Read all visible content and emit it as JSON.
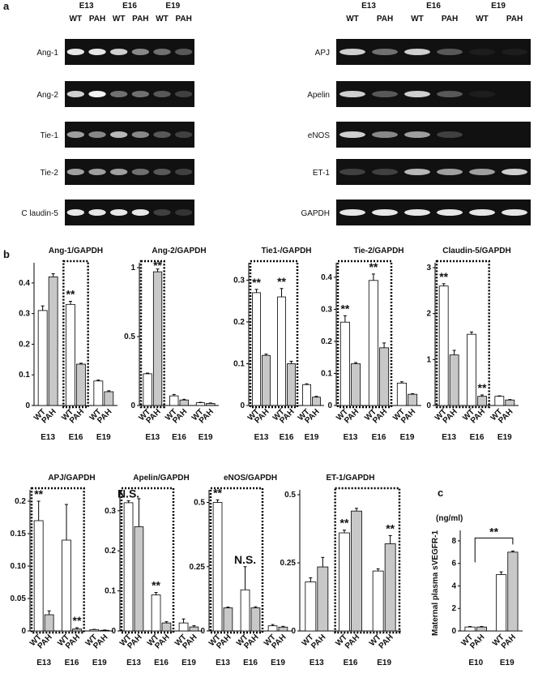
{
  "panels": [
    "a",
    "b",
    "c"
  ],
  "gels": {
    "stages": [
      "E13",
      "E16",
      "E19"
    ],
    "groups": [
      "WT",
      "PAH"
    ],
    "left_rows": [
      "Ang-1",
      "Ang-2",
      "Tie-1",
      "Tie-2",
      "C laudin-5"
    ],
    "right_rows": [
      "APJ",
      "Apelin",
      "eNOS",
      "ET-1",
      "GAPDH"
    ]
  },
  "chart_data": [
    {
      "type": "bar",
      "title": "Ang-1/GAPDH",
      "categories": [
        "E13",
        "E16",
        "E19"
      ],
      "ylim": [
        0,
        0.45
      ],
      "yticks": [
        0,
        0.1,
        0.2,
        0.3,
        0.4
      ],
      "series": [
        {
          "name": "WT",
          "color": "#ffffff",
          "values": [
            0.31,
            0.33,
            0.08
          ],
          "errors": [
            0.015,
            0.01,
            0.003
          ]
        },
        {
          "name": "PAH",
          "color": "#c8c8c8",
          "values": [
            0.42,
            0.135,
            0.045
          ],
          "errors": [
            0.01,
            0.003,
            0.003
          ]
        }
      ],
      "annotations": [
        "**"
      ]
    },
    {
      "type": "bar",
      "title": "Ang-2/GAPDH",
      "categories": [
        "E13",
        "E16",
        "E19"
      ],
      "ylim": [
        0,
        1
      ],
      "yticks": [
        0,
        0.5,
        1
      ],
      "series": [
        {
          "name": "WT",
          "color": "#ffffff",
          "values": [
            0.23,
            0.07,
            0.02
          ],
          "errors": [
            0.005,
            0.01,
            0.003
          ]
        },
        {
          "name": "PAH",
          "color": "#c8c8c8",
          "values": [
            0.97,
            0.04,
            0.015
          ],
          "errors": [
            0.02,
            0.005,
            0.003
          ]
        }
      ],
      "annotations": [
        "**"
      ]
    },
    {
      "type": "bar",
      "title": "Tie1-/GAPDH",
      "categories": [
        "E13",
        "E16",
        "E19"
      ],
      "ylim": [
        0,
        0.33
      ],
      "yticks": [
        0,
        0.1,
        0.2,
        0.3
      ],
      "series": [
        {
          "name": "WT",
          "color": "#ffffff",
          "values": [
            0.27,
            0.26,
            0.05
          ],
          "errors": [
            0.008,
            0.02,
            0.002
          ]
        },
        {
          "name": "PAH",
          "color": "#c8c8c8",
          "values": [
            0.12,
            0.1,
            0.02
          ],
          "errors": [
            0.003,
            0.006,
            0.002
          ]
        }
      ],
      "annotations": [
        "**",
        "**"
      ]
    },
    {
      "type": "bar",
      "title": "Tie-2/GAPDH",
      "categories": [
        "E13",
        "E16",
        "E19"
      ],
      "ylim": [
        0,
        0.43
      ],
      "yticks": [
        0,
        0.1,
        0.2,
        0.3,
        0.4
      ],
      "series": [
        {
          "name": "WT",
          "color": "#ffffff",
          "values": [
            0.26,
            0.39,
            0.07
          ],
          "errors": [
            0.02,
            0.02,
            0.004
          ]
        },
        {
          "name": "PAH",
          "color": "#c8c8c8",
          "values": [
            0.13,
            0.18,
            0.035
          ],
          "errors": [
            0.004,
            0.015,
            0.002
          ]
        }
      ],
      "annotations": [
        "**",
        "**"
      ]
    },
    {
      "type": "bar",
      "title": "Claudin-5/GAPDH",
      "categories": [
        "E13",
        "E16",
        "E19"
      ],
      "ylim": [
        0,
        3
      ],
      "yticks": [
        0,
        1,
        2,
        3
      ],
      "series": [
        {
          "name": "WT",
          "color": "#ffffff",
          "values": [
            2.6,
            1.55,
            0.2
          ],
          "errors": [
            0.05,
            0.05,
            0.01
          ]
        },
        {
          "name": "PAH",
          "color": "#c8c8c8",
          "values": [
            1.1,
            0.2,
            0.12
          ],
          "errors": [
            0.1,
            0.03,
            0.01
          ]
        }
      ],
      "annotations": [
        "**",
        "**"
      ]
    },
    {
      "type": "bar",
      "title": "APJ/GAPDH",
      "categories": [
        "E13",
        "E16",
        "E19"
      ],
      "ylim": [
        0,
        0.21
      ],
      "yticks": [
        0,
        0.05,
        {
          "value": 0.1,
          "label": "0.10"
        },
        0.15,
        0.2
      ],
      "series": [
        {
          "name": "WT",
          "color": "#ffffff",
          "values": [
            0.17,
            0.14,
            0.002
          ],
          "errors": [
            0.03,
            0.055,
            0.0005
          ]
        },
        {
          "name": "PAH",
          "color": "#c8c8c8",
          "values": [
            0.025,
            0.003,
            0.001
          ],
          "errors": [
            0.006,
            0.002,
            0.0005
          ]
        }
      ],
      "annotations": [
        "**",
        "**"
      ]
    },
    {
      "type": "bar",
      "title": "Apelin/GAPDH",
      "categories": [
        "E13",
        "E16",
        "E19"
      ],
      "ylim": [
        0,
        0.34
      ],
      "yticks": [
        0,
        0.1,
        0.2,
        0.3
      ],
      "series": [
        {
          "name": "WT",
          "color": "#ffffff",
          "values": [
            0.32,
            0.09,
            0.02
          ],
          "errors": [
            0.005,
            0.006,
            0.01
          ]
        },
        {
          "name": "PAH",
          "color": "#c8c8c8",
          "values": [
            0.26,
            0.02,
            0.01
          ],
          "errors": [
            0.07,
            0.003,
            0.003
          ]
        }
      ],
      "annotations": [
        "N.S.",
        "**"
      ]
    },
    {
      "type": "bar",
      "title": "eNOS/GAPDH",
      "categories": [
        "E13",
        "E16",
        "E19"
      ],
      "ylim": [
        0,
        0.53
      ],
      "yticks": [
        0,
        0.25,
        0.5
      ],
      "series": [
        {
          "name": "WT",
          "color": "#ffffff",
          "values": [
            0.5,
            0.16,
            0.02
          ],
          "errors": [
            0.01,
            0.09,
            0.005
          ]
        },
        {
          "name": "PAH",
          "color": "#c8c8c8",
          "values": [
            0.09,
            0.09,
            0.015
          ],
          "errors": [
            0.003,
            0.004,
            0.003
          ]
        }
      ],
      "annotations": [
        "**",
        "N.S."
      ]
    },
    {
      "type": "bar",
      "title": "ET-1/GAPDH",
      "categories": [
        "E13",
        "E16",
        "E19"
      ],
      "ylim": [
        0,
        0.5
      ],
      "yticks": [
        0,
        0.25,
        0.5
      ],
      "series": [
        {
          "name": "WT",
          "color": "#ffffff",
          "values": [
            0.18,
            0.36,
            0.22
          ],
          "errors": [
            0.015,
            0.01,
            0.008
          ]
        },
        {
          "name": "PAH",
          "color": "#c8c8c8",
          "values": [
            0.235,
            0.44,
            0.32
          ],
          "errors": [
            0.035,
            0.01,
            0.03
          ]
        }
      ],
      "annotations": [
        "**",
        "**"
      ]
    },
    {
      "type": "bar",
      "title": "(ng/ml)",
      "y_label": "Maternal plasma sVEGFR-1",
      "categories": [
        "E10",
        "E19"
      ],
      "ylim": [
        0,
        8.5
      ],
      "yticks": [
        0,
        2,
        4,
        6,
        8
      ],
      "series": [
        {
          "name": "WT",
          "color": "#ffffff",
          "values": [
            0.35,
            5
          ],
          "errors": [
            0.05,
            0.25
          ]
        },
        {
          "name": "PAH",
          "color": "#c8c8c8",
          "values": [
            0.35,
            7
          ],
          "errors": [
            0.05,
            0.1
          ]
        }
      ],
      "annotations": [
        "**"
      ]
    }
  ]
}
